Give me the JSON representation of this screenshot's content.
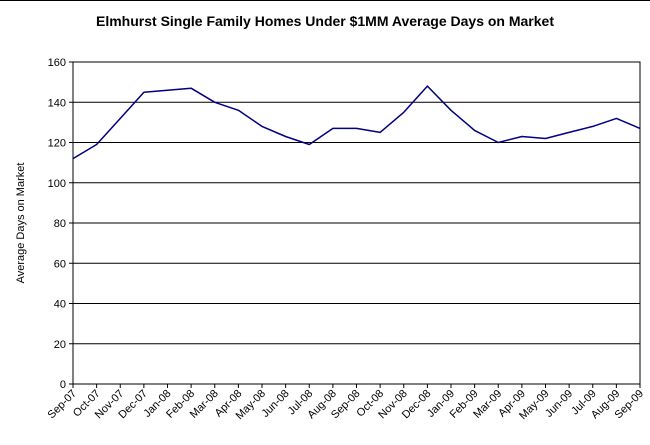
{
  "chart_data": {
    "type": "line",
    "title": "Elmhurst Single Family Homes Under $1MM Average Days on Market",
    "xlabel": "",
    "ylabel": "Average Days on Market",
    "ylim": [
      0,
      160
    ],
    "yticks": [
      0,
      20,
      40,
      60,
      80,
      100,
      120,
      140,
      160
    ],
    "grid": "horizontal",
    "line_color": "#000080",
    "categories": [
      "Sep-07",
      "Oct-07",
      "Nov-07",
      "Dec-07",
      "Jan-08",
      "Feb-08",
      "Mar-08",
      "Apr-08",
      "May-08",
      "Jun-08",
      "Jul-08",
      "Aug-08",
      "Sep-08",
      "Oct-08",
      "Nov-08",
      "Dec-08",
      "Jan-09",
      "Feb-09",
      "Mar-09",
      "Apr-09",
      "May-09",
      "Jun-09",
      "Jul-09",
      "Aug-09",
      "Sep-09"
    ],
    "series": [
      {
        "values": [
          112,
          119,
          132,
          145,
          146,
          147,
          140,
          136,
          128,
          123,
          119,
          127,
          127,
          125,
          135,
          148,
          136,
          126,
          120,
          123,
          122,
          125,
          128,
          132,
          127
        ]
      }
    ]
  }
}
